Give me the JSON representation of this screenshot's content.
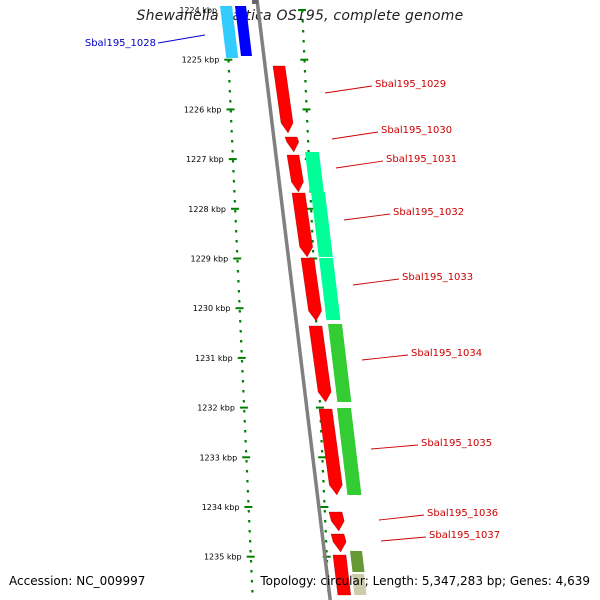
{
  "title": "Shewanella baltica OS195, complete genome",
  "accession": "Accession: NC_009997",
  "summary": "Topology: circular; Length: 5,347,283 bp; Genes: 4,639",
  "colors": {
    "backbone": "#808080",
    "tick": "#008000",
    "cds_forward": "#ff0000",
    "label_red": "#cc0000",
    "label_blue": "#0000cc",
    "teal": "#00ff99",
    "green": "#33cc33",
    "olive": "#669933",
    "cyan": "#33ccff",
    "blue": "#0000ff"
  },
  "scale": {
    "ticks": [
      "1224 kbp",
      "1225 kbp",
      "1226 kbp",
      "1227 kbp",
      "1228 kbp",
      "1229 kbp",
      "1230 kbp",
      "1231 kbp",
      "1232 kbp",
      "1233 kbp",
      "1234 kbp",
      "1235 kbp"
    ]
  },
  "genes": [
    {
      "label": "Sbal195_1028",
      "color": "blue"
    },
    {
      "label": "Sbal195_1029",
      "color": "red"
    },
    {
      "label": "Sbal195_1030",
      "color": "red"
    },
    {
      "label": "Sbal195_1031",
      "color": "red"
    },
    {
      "label": "Sbal195_1032",
      "color": "red"
    },
    {
      "label": "Sbal195_1033",
      "color": "red"
    },
    {
      "label": "Sbal195_1034",
      "color": "red"
    },
    {
      "label": "Sbal195_1035",
      "color": "red"
    },
    {
      "label": "Sbal195_1036",
      "color": "red"
    },
    {
      "label": "Sbal195_1037",
      "color": "red"
    }
  ]
}
